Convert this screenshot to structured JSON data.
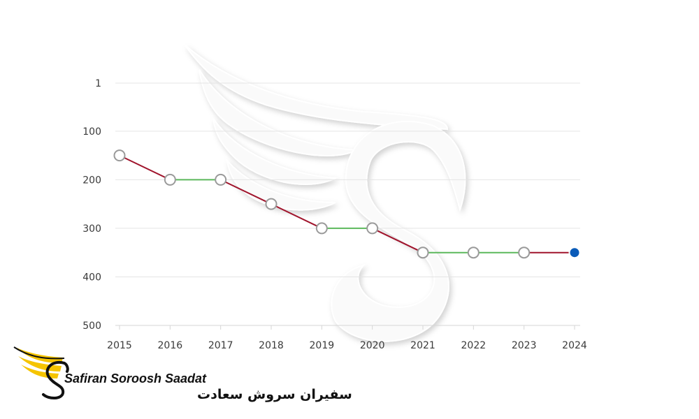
{
  "chart_data": {
    "type": "line",
    "title": "",
    "xlabel": "",
    "ylabel": "",
    "y_inverted": true,
    "ylim": [
      1,
      500
    ],
    "x": [
      "2015",
      "2016",
      "2017",
      "2018",
      "2019",
      "2020",
      "2021",
      "2022",
      "2023",
      "2024"
    ],
    "values": [
      150,
      200,
      200,
      250,
      300,
      300,
      350,
      350,
      350,
      350
    ],
    "y_ticks": [
      "1",
      "100",
      "200",
      "300",
      "400",
      "500"
    ],
    "y_tick_values": [
      1,
      100,
      200,
      300,
      400,
      500
    ],
    "grid": true,
    "colors": {
      "rising": "#a0142c",
      "flat": "#5cb85c",
      "marker_stroke": "#9a9a9a",
      "latest_marker": "#0a5bb8",
      "grid": "#e4e4e4"
    }
  },
  "brand": {
    "name_en": "Safiran Soroosh Saadat",
    "name_fa": "سفیران سروش سعادت",
    "colors": {
      "wing": "#f5c400",
      "ink": "#111111",
      "watermark": "#f7f7f7"
    }
  }
}
